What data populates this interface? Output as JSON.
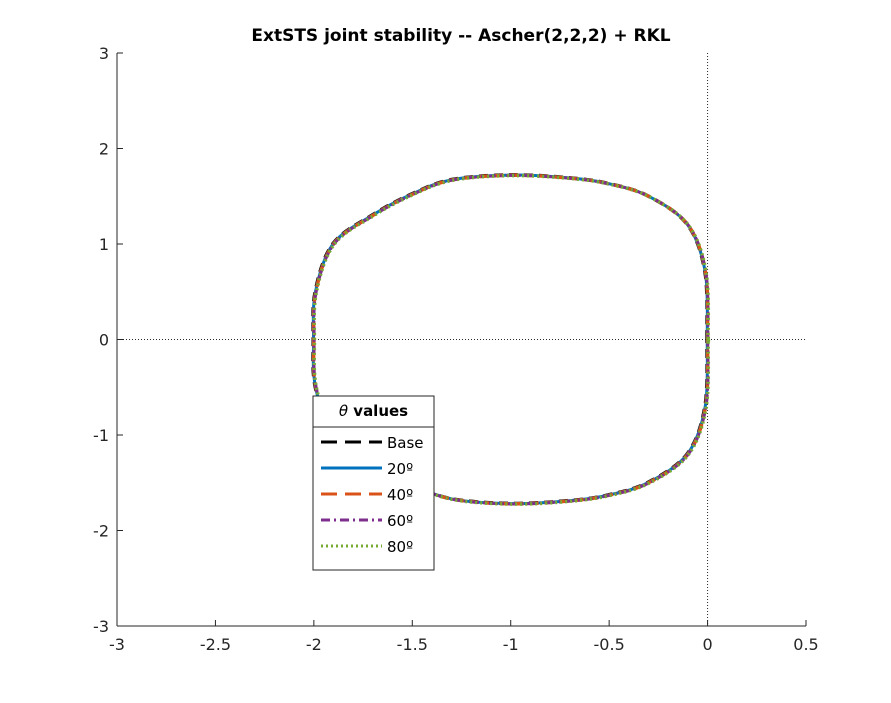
{
  "chart_data": {
    "type": "line",
    "title": "ExtSTS joint stability -- Ascher(2,2,2) + RKL",
    "xlabel": "",
    "ylabel": "",
    "xlim": [
      -3,
      0.5
    ],
    "ylim": [
      -3,
      3
    ],
    "x_ticks": [
      -3,
      -2.5,
      -2,
      -1.5,
      -1,
      -0.5,
      0,
      0.5
    ],
    "x_tick_labels": [
      "-3",
      "-2.5",
      "-2",
      "-1.5",
      "-1",
      "-0.5",
      "0",
      "0.5"
    ],
    "y_ticks": [
      -3,
      -2,
      -1,
      0,
      1,
      2,
      3
    ],
    "y_tick_labels": [
      "-3",
      "-2",
      "-1",
      "0",
      "1",
      "2",
      "3"
    ],
    "grid": false,
    "reference_lines": {
      "x": 0,
      "y": 0,
      "style": "dotted"
    },
    "legend": {
      "title_symbol": "θ",
      "title_text": " values",
      "placement": "lower-left"
    },
    "series": [
      {
        "name": "Base",
        "color": "#000000",
        "style": "dashed"
      },
      {
        "name": "20º",
        "color": "#0072BD",
        "style": "solid"
      },
      {
        "name": "40º",
        "color": "#D95319",
        "style": "dashed"
      },
      {
        "name": "60º",
        "color": "#7E2F8E",
        "style": "dashdot"
      },
      {
        "name": "80º",
        "color": "#77AC30",
        "style": "dotted"
      }
    ],
    "curve": {
      "description_points": [
        [
          0.0,
          0.0
        ],
        [
          -0.01,
          0.7
        ],
        [
          -0.1,
          1.2
        ],
        [
          -0.3,
          1.5
        ],
        [
          -0.5,
          1.63
        ],
        [
          -0.7,
          1.69
        ],
        [
          -1.0,
          1.72
        ],
        [
          -1.3,
          1.67
        ],
        [
          -1.5,
          1.52
        ],
        [
          -1.7,
          1.3
        ],
        [
          -1.9,
          1.0
        ],
        [
          -1.99,
          0.5
        ],
        [
          -2.0,
          0.0
        ]
      ]
    }
  }
}
